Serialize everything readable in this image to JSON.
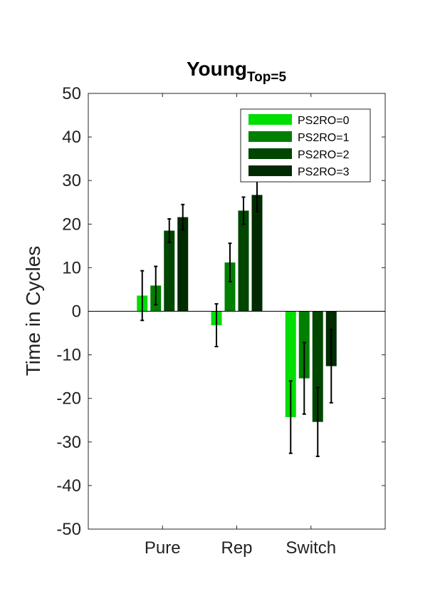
{
  "chart_data": {
    "type": "bar",
    "title": "Young",
    "title_subscript": "Top=5",
    "xlabel": "",
    "ylabel": "Time in Cycles",
    "categories": [
      "Pure",
      "Rep",
      "Switch"
    ],
    "ylim": [
      -50,
      50
    ],
    "yticks": [
      50,
      40,
      30,
      20,
      10,
      0,
      -10,
      -20,
      -30,
      -40,
      -50
    ],
    "ytick_labels": [
      "50",
      "40",
      "30",
      "20",
      "10",
      "0",
      "-10",
      "-20",
      "-30",
      "-40",
      "-50"
    ],
    "legend_position": "top-right",
    "grid": false,
    "error_bars": true,
    "series": [
      {
        "name": "PS2RO=0",
        "color": "#00dd00",
        "values": [
          3.6,
          -3.2,
          -24.3
        ],
        "errors": [
          5.7,
          4.9,
          8.3
        ]
      },
      {
        "name": "PS2RO=1",
        "color": "#007f00",
        "values": [
          5.9,
          11.2,
          -15.4
        ],
        "errors": [
          4.4,
          4.4,
          8.2
        ]
      },
      {
        "name": "PS2RO=2",
        "color": "#004500",
        "values": [
          18.5,
          23.1,
          -25.4
        ],
        "errors": [
          2.7,
          3.1,
          7.9
        ]
      },
      {
        "name": "PS2RO=3",
        "color": "#002b00",
        "values": [
          21.6,
          26.7,
          -12.6
        ],
        "errors": [
          2.9,
          3.8,
          8.4
        ]
      }
    ]
  }
}
